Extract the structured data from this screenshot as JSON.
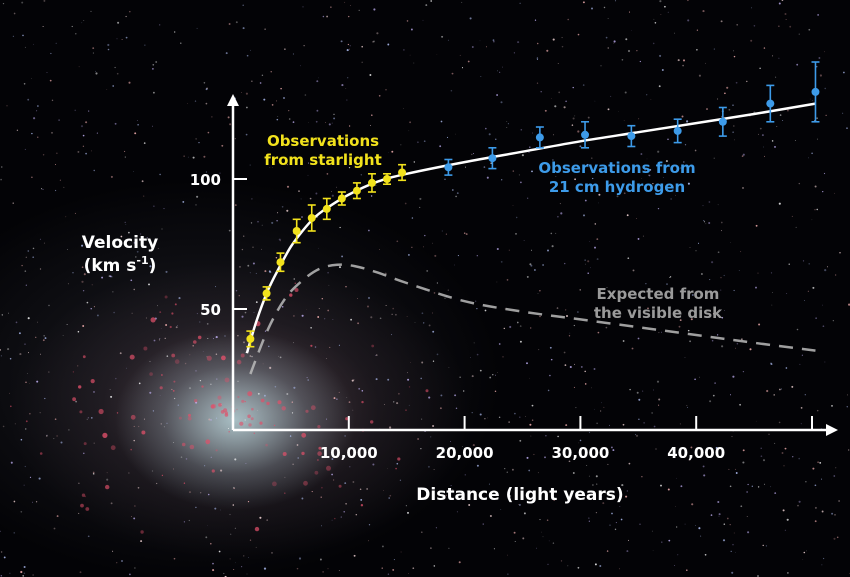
{
  "chart_data": {
    "type": "scatter",
    "title": "",
    "xlabel": "Distance (light years)",
    "ylabel": "Velocity (km s⁻¹)",
    "xlim": [
      0,
      50000
    ],
    "ylim": [
      0,
      140
    ],
    "x_ticks": [
      10000,
      20000,
      30000,
      40000,
      50000
    ],
    "x_tick_labels": [
      "10,000",
      "20,000",
      "30,000",
      "40,000",
      ""
    ],
    "y_ticks": [
      50,
      100
    ],
    "y_tick_labels": [
      "50",
      "100"
    ],
    "grid": false,
    "series": [
      {
        "name": "Observations from starlight",
        "color": "#f2e21c",
        "points": [
          {
            "x": 1500,
            "y": 38.5,
            "err": 3
          },
          {
            "x": 2900,
            "y": 56,
            "err": 2.5
          },
          {
            "x": 4100,
            "y": 68,
            "err": 3.5
          },
          {
            "x": 5500,
            "y": 80,
            "err": 4.5
          },
          {
            "x": 6800,
            "y": 85,
            "err": 5
          },
          {
            "x": 8100,
            "y": 88.5,
            "err": 4
          },
          {
            "x": 9400,
            "y": 92.5,
            "err": 2.5
          },
          {
            "x": 10700,
            "y": 95.5,
            "err": 3
          },
          {
            "x": 12000,
            "y": 98.5,
            "err": 3.5
          },
          {
            "x": 13300,
            "y": 100,
            "err": 2
          },
          {
            "x": 14600,
            "y": 102.5,
            "err": 3
          }
        ]
      },
      {
        "name": "Observations from 21 cm hydrogen",
        "color": "#3d9be9",
        "points": [
          {
            "x": 18600,
            "y": 104.5,
            "err": 3
          },
          {
            "x": 22400,
            "y": 108,
            "err": 4
          },
          {
            "x": 26500,
            "y": 116,
            "err": 4
          },
          {
            "x": 30400,
            "y": 117,
            "err": 5
          },
          {
            "x": 34400,
            "y": 116.5,
            "err": 4
          },
          {
            "x": 38400,
            "y": 118.5,
            "err": 4.5
          },
          {
            "x": 42300,
            "y": 122,
            "err": 5.5
          },
          {
            "x": 46400,
            "y": 129,
            "err": 7
          },
          {
            "x": 50300,
            "y": 133.5,
            "err": 11.5
          }
        ]
      }
    ],
    "fit_curve": {
      "color": "#ffffff",
      "points": [
        [
          1200,
          33
        ],
        [
          2000,
          45
        ],
        [
          3000,
          57
        ],
        [
          4000,
          66
        ],
        [
          5000,
          74
        ],
        [
          6000,
          80
        ],
        [
          7000,
          85
        ],
        [
          8000,
          88.5
        ],
        [
          10000,
          94
        ],
        [
          12500,
          99
        ],
        [
          15000,
          102
        ],
        [
          20000,
          106.5
        ],
        [
          25000,
          110.5
        ],
        [
          30000,
          114.5
        ],
        [
          35000,
          118
        ],
        [
          40000,
          121.5
        ],
        [
          45000,
          125
        ],
        [
          50300,
          129
        ]
      ]
    },
    "expected_curve": {
      "name": "Expected from the visible disk",
      "color": "#bbbbbb",
      "style": "dashed",
      "points": [
        [
          1500,
          25
        ],
        [
          3000,
          42
        ],
        [
          4500,
          54
        ],
        [
          6000,
          61
        ],
        [
          7500,
          65.5
        ],
        [
          9000,
          67
        ],
        [
          10500,
          66.5
        ],
        [
          12500,
          64
        ],
        [
          15000,
          60
        ],
        [
          20000,
          53
        ],
        [
          25000,
          49
        ],
        [
          30000,
          46
        ],
        [
          35000,
          43
        ],
        [
          40000,
          40
        ],
        [
          45000,
          37
        ],
        [
          50300,
          34
        ]
      ]
    },
    "annotations": {
      "starlight": [
        "Observations",
        "from starlight"
      ],
      "hydrogen": [
        "Observations from",
        "21 cm hydrogen"
      ],
      "expected": [
        "Expected from",
        "the visible disk"
      ],
      "ylabel_lines": [
        "Velocity",
        "(km s",
        "-1",
        ")"
      ]
    }
  }
}
